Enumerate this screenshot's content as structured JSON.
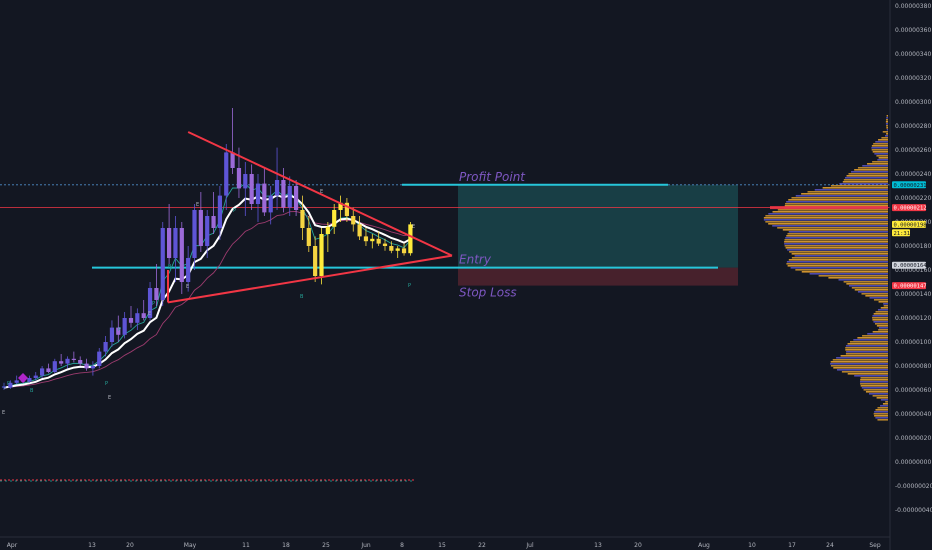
{
  "chart_data": {
    "type": "candlestick",
    "title": "",
    "y_axis": {
      "ticks": [
        "0.00000380",
        "0.00000360",
        "0.00000340",
        "0.00000320",
        "0.00000300",
        "0.00000280",
        "0.00000260",
        "0.00000240",
        "0.00000220",
        "0.00000200",
        "0.00000180",
        "0.00000160",
        "0.00000140",
        "0.00000120",
        "0.00000100",
        "0.00000080",
        "0.00000060",
        "0.00000040",
        "0.00000020",
        "0.00000000",
        "-0.00000020",
        "-0.00000040"
      ],
      "ylim": [
        -4.7e-07,
        3.89e-06
      ]
    },
    "x_axis": {
      "ticks": [
        "Apr",
        "13",
        "20",
        "May",
        "11",
        "18",
        "25",
        "Jun",
        "8",
        "15",
        "22",
        "Jul",
        "13",
        "20",
        "Aug",
        "10",
        "17",
        "24",
        "Sep"
      ]
    },
    "price_badges": [
      {
        "label": "0.00000231",
        "value": 2.31e-06,
        "color": "#00bcd4",
        "text_color": "#131722"
      },
      {
        "label": "0.00000212",
        "value": 2.12e-06,
        "color": "#f23645",
        "text_color": "#ffffff"
      },
      {
        "label": "0.00000198",
        "value": 1.98e-06,
        "color": "#ffeb3b",
        "text_color": "#131722"
      },
      {
        "label": "21:31",
        "value": 1.91e-06,
        "color": "#ffeb3b",
        "text_color": "#131722"
      },
      {
        "label": "0.00000164",
        "value": 1.64e-06,
        "color": "#d1d4dc",
        "text_color": "#131722"
      },
      {
        "label": "0.00000147",
        "value": 1.47e-06,
        "color": "#f23645",
        "text_color": "#ffffff"
      }
    ],
    "annotations": {
      "profit": "Profit Point",
      "entry": "Entry",
      "stop": "Stop Loss"
    },
    "levels": {
      "profit": 2.31e-06,
      "resistance": 2.12e-06,
      "entry": 1.62e-06,
      "stop": 1.47e-06
    },
    "triangle": [
      {
        "t": 44,
        "v": 2.75e-06
      },
      {
        "t": 120,
        "v": 1.72e-06
      },
      {
        "t": 44,
        "v": 1.33e-06
      }
    ],
    "markers": [
      "P",
      "B",
      "E",
      "P",
      "E",
      "P",
      "E",
      "P",
      "B",
      "E",
      "E",
      "P",
      "B",
      "E",
      "P",
      "E"
    ],
    "candles": [
      {
        "o": 6.3e-07,
        "h": 6.6e-07,
        "l": 6e-07,
        "c": 6.2e-07
      },
      {
        "o": 6.2e-07,
        "h": 6.8e-07,
        "l": 6.1e-07,
        "c": 6.6e-07
      },
      {
        "o": 6.6e-07,
        "h": 7.2e-07,
        "l": 6.5e-07,
        "c": 6.8e-07
      },
      {
        "o": 6.8e-07,
        "h": 7.1e-07,
        "l": 6.6e-07,
        "c": 6.7e-07
      },
      {
        "o": 6.7e-07,
        "h": 7.2e-07,
        "l": 6.6e-07,
        "c": 7e-07
      },
      {
        "o": 7e-07,
        "h": 7.5e-07,
        "l": 6.8e-07,
        "c": 7.2e-07
      },
      {
        "o": 7.2e-07,
        "h": 8e-07,
        "l": 7e-07,
        "c": 7.8e-07
      },
      {
        "o": 7.8e-07,
        "h": 8.2e-07,
        "l": 7.4e-07,
        "c": 7.5e-07
      },
      {
        "o": 7.5e-07,
        "h": 8.6e-07,
        "l": 7.4e-07,
        "c": 8.4e-07
      },
      {
        "o": 8.4e-07,
        "h": 9e-07,
        "l": 8e-07,
        "c": 8.2e-07
      },
      {
        "o": 8.2e-07,
        "h": 8.8e-07,
        "l": 7.8e-07,
        "c": 8.6e-07
      },
      {
        "o": 8.6e-07,
        "h": 9.2e-07,
        "l": 8.3e-07,
        "c": 8.5e-07
      },
      {
        "o": 8.5e-07,
        "h": 8.8e-07,
        "l": 8e-07,
        "c": 8.2e-07
      },
      {
        "o": 8.2e-07,
        "h": 8.6e-07,
        "l": 7.6e-07,
        "c": 7.8e-07
      },
      {
        "o": 7.8e-07,
        "h": 8.4e-07,
        "l": 7.2e-07,
        "c": 8e-07
      },
      {
        "o": 8e-07,
        "h": 9.5e-07,
        "l": 7.8e-07,
        "c": 9.2e-07
      },
      {
        "o": 9.2e-07,
        "h": 1.05e-06,
        "l": 8.8e-07,
        "c": 1e-06
      },
      {
        "o": 1e-06,
        "h": 1.18e-06,
        "l": 9.6e-07,
        "c": 1.12e-06
      },
      {
        "o": 1.12e-06,
        "h": 1.22e-06,
        "l": 1e-06,
        "c": 1.06e-06
      },
      {
        "o": 1.06e-06,
        "h": 1.25e-06,
        "l": 1.03e-06,
        "c": 1.2e-06
      },
      {
        "o": 1.2e-06,
        "h": 1.3e-06,
        "l": 1.12e-06,
        "c": 1.16e-06
      },
      {
        "o": 1.16e-06,
        "h": 1.28e-06,
        "l": 1.1e-06,
        "c": 1.24e-06
      },
      {
        "o": 1.24e-06,
        "h": 1.35e-06,
        "l": 1.18e-06,
        "c": 1.2e-06
      },
      {
        "o": 1.2e-06,
        "h": 1.5e-06,
        "l": 1.18e-06,
        "c": 1.45e-06
      },
      {
        "o": 1.45e-06,
        "h": 1.65e-06,
        "l": 1.3e-06,
        "c": 1.35e-06
      },
      {
        "o": 1.35e-06,
        "h": 2e-06,
        "l": 1.3e-06,
        "c": 1.95e-06
      },
      {
        "o": 1.95e-06,
        "h": 2.15e-06,
        "l": 1.65e-06,
        "c": 1.7e-06
      },
      {
        "o": 1.7e-06,
        "h": 2.05e-06,
        "l": 1.5e-06,
        "c": 1.95e-06
      },
      {
        "o": 1.95e-06,
        "h": 2e-06,
        "l": 1.4e-06,
        "c": 1.5e-06
      },
      {
        "o": 1.5e-06,
        "h": 1.8e-06,
        "l": 1.42e-06,
        "c": 1.7e-06
      },
      {
        "o": 1.7e-06,
        "h": 2.15e-06,
        "l": 1.6e-06,
        "c": 2.1e-06
      },
      {
        "o": 2.1e-06,
        "h": 2.25e-06,
        "l": 1.75e-06,
        "c": 1.8e-06
      },
      {
        "o": 1.8e-06,
        "h": 2.1e-06,
        "l": 1.7e-06,
        "c": 2.05e-06
      },
      {
        "o": 2.05e-06,
        "h": 2.25e-06,
        "l": 1.9e-06,
        "c": 1.95e-06
      },
      {
        "o": 1.95e-06,
        "h": 2.3e-06,
        "l": 1.85e-06,
        "c": 2.22e-06
      },
      {
        "o": 2.22e-06,
        "h": 2.65e-06,
        "l": 2.1e-06,
        "c": 2.58e-06
      },
      {
        "o": 2.58e-06,
        "h": 2.95e-06,
        "l": 2.4e-06,
        "c": 2.45e-06
      },
      {
        "o": 2.45e-06,
        "h": 2.62e-06,
        "l": 2.2e-06,
        "c": 2.28e-06
      },
      {
        "o": 2.28e-06,
        "h": 2.5e-06,
        "l": 2.05e-06,
        "c": 2.4e-06
      },
      {
        "o": 2.4e-06,
        "h": 2.48e-06,
        "l": 2.1e-06,
        "c": 2.15e-06
      },
      {
        "o": 2.15e-06,
        "h": 2.4e-06,
        "l": 2e-06,
        "c": 2.32e-06
      },
      {
        "o": 2.32e-06,
        "h": 2.45e-06,
        "l": 2.05e-06,
        "c": 2.08e-06
      },
      {
        "o": 2.08e-06,
        "h": 2.3e-06,
        "l": 1.98e-06,
        "c": 2.22e-06
      },
      {
        "o": 2.22e-06,
        "h": 2.62e-06,
        "l": 2.1e-06,
        "c": 2.35e-06
      },
      {
        "o": 2.35e-06,
        "h": 2.45e-06,
        "l": 2.08e-06,
        "c": 2.12e-06
      },
      {
        "o": 2.12e-06,
        "h": 2.38e-06,
        "l": 2.05e-06,
        "c": 2.3e-06
      },
      {
        "o": 2.3e-06,
        "h": 2.35e-06,
        "l": 2.05e-06,
        "c": 2.1e-06
      },
      {
        "o": 2.1e-06,
        "h": 2.22e-06,
        "l": 1.85e-06,
        "c": 1.95e-06
      },
      {
        "o": 1.95e-06,
        "h": 2.05e-06,
        "l": 1.75e-06,
        "c": 1.8e-06
      },
      {
        "o": 1.8e-06,
        "h": 1.88e-06,
        "l": 1.5e-06,
        "c": 1.55e-06
      },
      {
        "o": 1.55e-06,
        "h": 1.95e-06,
        "l": 1.48e-06,
        "c": 1.9e-06
      },
      {
        "o": 1.9e-06,
        "h": 2e-06,
        "l": 1.75e-06,
        "c": 1.96e-06
      },
      {
        "o": 1.96e-06,
        "h": 2.15e-06,
        "l": 1.9e-06,
        "c": 2.1e-06
      },
      {
        "o": 2.1e-06,
        "h": 2.22e-06,
        "l": 2e-06,
        "c": 2.16e-06
      },
      {
        "o": 2.16e-06,
        "h": 2.2e-06,
        "l": 2e-06,
        "c": 2.05e-06
      },
      {
        "o": 2.05e-06,
        "h": 2.12e-06,
        "l": 1.92e-06,
        "c": 1.98e-06
      },
      {
        "o": 1.98e-06,
        "h": 2.05e-06,
        "l": 1.85e-06,
        "c": 1.88e-06
      },
      {
        "o": 1.88e-06,
        "h": 1.95e-06,
        "l": 1.8e-06,
        "c": 1.84e-06
      },
      {
        "o": 1.84e-06,
        "h": 1.9e-06,
        "l": 1.78e-06,
        "c": 1.86e-06
      },
      {
        "o": 1.86e-06,
        "h": 1.92e-06,
        "l": 1.8e-06,
        "c": 1.82e-06
      },
      {
        "o": 1.82e-06,
        "h": 1.86e-06,
        "l": 1.76e-06,
        "c": 1.8e-06
      },
      {
        "o": 1.8e-06,
        "h": 1.84e-06,
        "l": 1.74e-06,
        "c": 1.76e-06
      },
      {
        "o": 1.76e-06,
        "h": 1.8e-06,
        "l": 1.7e-06,
        "c": 1.78e-06
      },
      {
        "o": 1.78e-06,
        "h": 1.82e-06,
        "l": 1.72e-06,
        "c": 1.74e-06
      },
      {
        "o": 1.74e-06,
        "h": 2e-06,
        "l": 1.72e-06,
        "c": 1.98e-06
      }
    ]
  }
}
